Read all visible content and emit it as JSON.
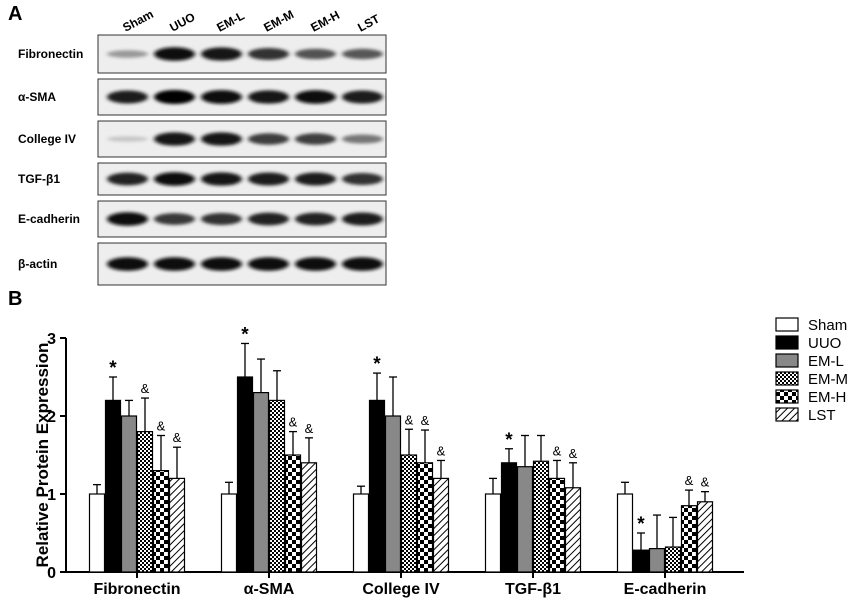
{
  "panel_a": {
    "label": "A",
    "lanes": [
      "Sham",
      "UUO",
      "EM-L",
      "EM-M",
      "EM-H",
      "LST"
    ],
    "rows": [
      {
        "name": "Fibronectin",
        "intensity": [
          0.28,
          0.95,
          0.92,
          0.78,
          0.62,
          0.6
        ]
      },
      {
        "name": "α-SMA",
        "intensity": [
          0.88,
          1.0,
          0.97,
          0.92,
          0.95,
          0.9
        ]
      },
      {
        "name": "College IV",
        "intensity": [
          0.06,
          0.92,
          0.92,
          0.72,
          0.72,
          0.45
        ]
      },
      {
        "name": "TGF-β1",
        "intensity": [
          0.85,
          0.95,
          0.92,
          0.88,
          0.88,
          0.78
        ]
      },
      {
        "name": "E-cadherin",
        "intensity": [
          0.95,
          0.75,
          0.78,
          0.85,
          0.85,
          0.88
        ]
      },
      {
        "name": "β-actin",
        "intensity": [
          0.95,
          0.95,
          0.95,
          0.95,
          0.95,
          0.95
        ]
      }
    ]
  },
  "panel_b": {
    "label": "B",
    "chart_data": {
      "type": "bar",
      "categories": [
        "Fibronectin",
        "α-SMA",
        "College IV",
        "TGF-β1",
        "E-cadherin"
      ],
      "ylabel": "Relative Protein Expression",
      "ylim": [
        0,
        3
      ],
      "yticks": [
        "0",
        "1",
        "2",
        "3"
      ],
      "legend_position": "top-right",
      "series": [
        {
          "name": "Sham",
          "fill": "white",
          "values": [
            1.0,
            1.0,
            1.0,
            1.0,
            1.0
          ],
          "errors": [
            0.12,
            0.15,
            0.1,
            0.2,
            0.15
          ]
        },
        {
          "name": "UUO",
          "fill": "black",
          "values": [
            2.2,
            2.5,
            2.2,
            1.4,
            0.28
          ],
          "errors": [
            0.3,
            0.43,
            0.35,
            0.18,
            0.22
          ]
        },
        {
          "name": "EM-L",
          "fill": "gray",
          "values": [
            2.0,
            2.3,
            2.0,
            1.35,
            0.3
          ],
          "errors": [
            0.2,
            0.43,
            0.5,
            0.4,
            0.43
          ]
        },
        {
          "name": "EM-M",
          "fill": "dense-check",
          "values": [
            1.8,
            2.2,
            1.5,
            1.42,
            0.32
          ],
          "errors": [
            0.43,
            0.38,
            0.33,
            0.33,
            0.38
          ]
        },
        {
          "name": "EM-H",
          "fill": "coarse-check",
          "values": [
            1.3,
            1.5,
            1.4,
            1.2,
            0.85
          ],
          "errors": [
            0.45,
            0.3,
            0.42,
            0.23,
            0.2
          ]
        },
        {
          "name": "LST",
          "fill": "diagonal",
          "values": [
            1.2,
            1.4,
            1.2,
            1.08,
            0.9
          ],
          "errors": [
            0.4,
            0.32,
            0.23,
            0.32,
            0.13
          ]
        }
      ],
      "annotations": [
        {
          "category": 0,
          "series": 1,
          "text": "*"
        },
        {
          "category": 0,
          "series": 3,
          "text": "&"
        },
        {
          "category": 0,
          "series": 4,
          "text": "&"
        },
        {
          "category": 0,
          "series": 5,
          "text": "&"
        },
        {
          "category": 1,
          "series": 1,
          "text": "*"
        },
        {
          "category": 1,
          "series": 4,
          "text": "&"
        },
        {
          "category": 1,
          "series": 5,
          "text": "&"
        },
        {
          "category": 2,
          "series": 1,
          "text": "*"
        },
        {
          "category": 2,
          "series": 3,
          "text": "&"
        },
        {
          "category": 2,
          "series": 4,
          "text": "&"
        },
        {
          "category": 2,
          "series": 5,
          "text": "&"
        },
        {
          "category": 3,
          "series": 1,
          "text": "*"
        },
        {
          "category": 3,
          "series": 4,
          "text": "&"
        },
        {
          "category": 3,
          "series": 5,
          "text": "&"
        },
        {
          "category": 4,
          "series": 1,
          "text": "*"
        },
        {
          "category": 4,
          "series": 4,
          "text": "&"
        },
        {
          "category": 4,
          "series": 5,
          "text": "&"
        }
      ]
    }
  }
}
